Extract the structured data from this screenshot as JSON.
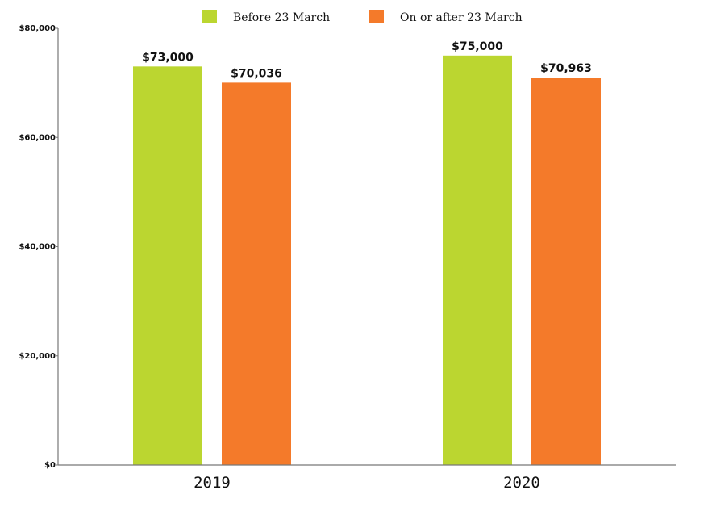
{
  "chart_data": {
    "type": "bar",
    "categories": [
      "2019",
      "2020"
    ],
    "series": [
      {
        "name": "Before 23 March",
        "color": "#bbd630",
        "values": [
          73000,
          75000
        ],
        "labels": [
          "$73,000",
          "$75,000"
        ]
      },
      {
        "name": "On or after 23 March",
        "color": "#f47a2a",
        "values": [
          70036,
          70963
        ],
        "labels": [
          "$70,036",
          "$70,963"
        ]
      }
    ],
    "ylim": [
      0,
      80000
    ],
    "yticks": [
      0,
      20000,
      40000,
      60000,
      80000
    ],
    "ytick_labels": [
      "$0",
      "$20,000",
      "$40,000",
      "$60,000",
      "$80,000"
    ],
    "grid": false,
    "legend_position": "top"
  }
}
